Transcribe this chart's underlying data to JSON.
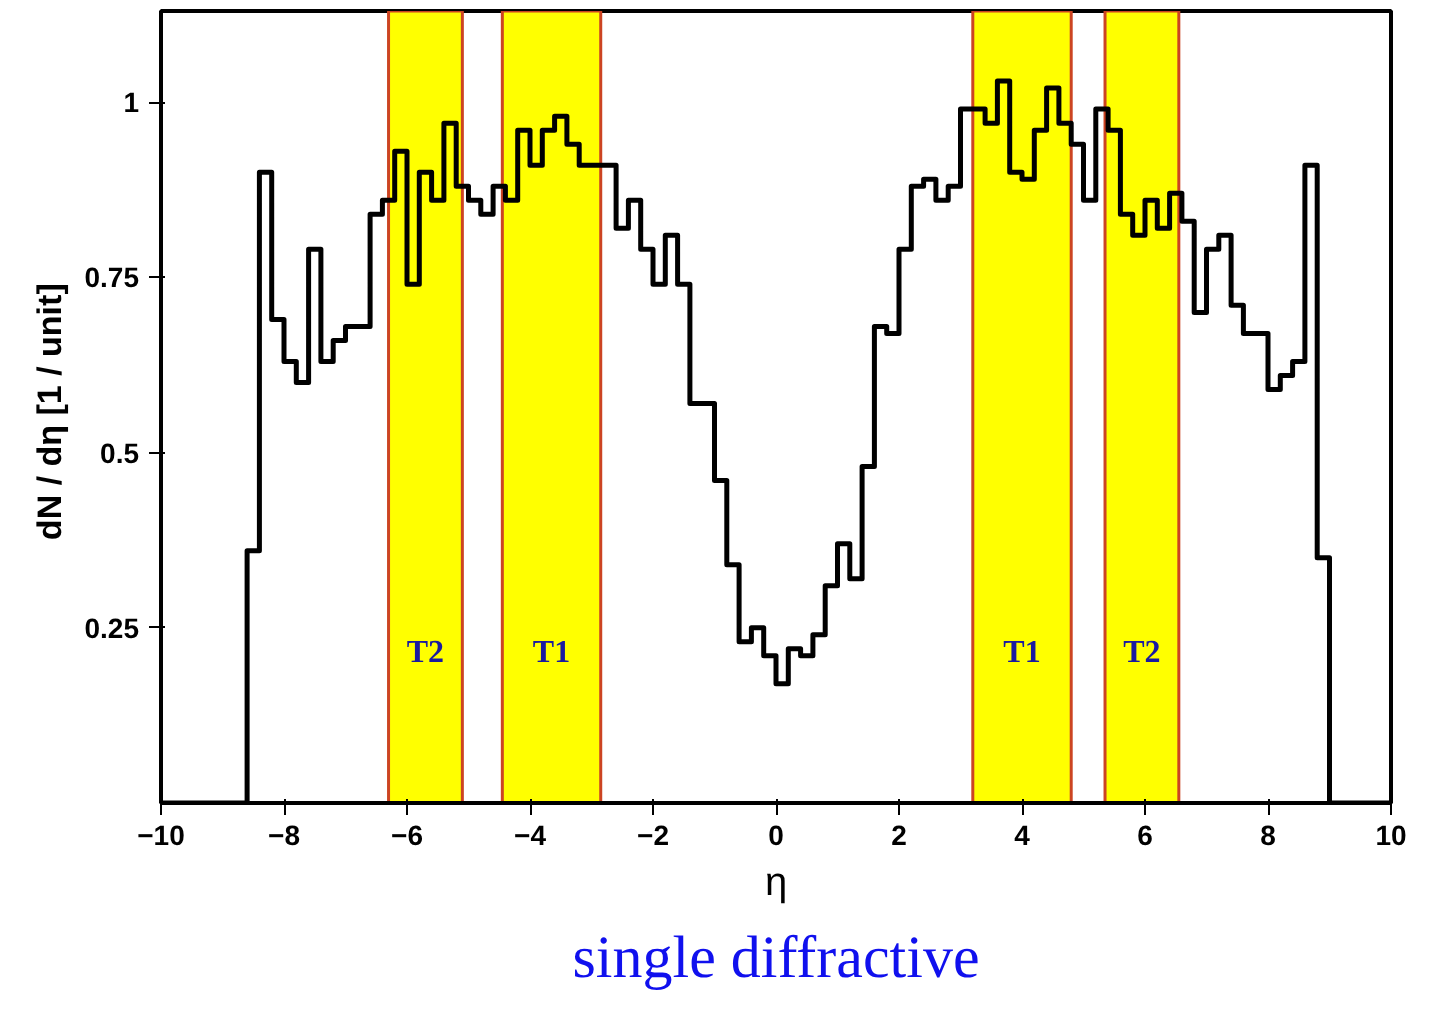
{
  "chart_data": {
    "type": "histogram",
    "xlabel": "η",
    "ylabel": "dN / dη  [1 / unit]",
    "annotations": [
      "single diffractive"
    ],
    "bins": [
      -10,
      -9.8,
      -9.6,
      -9.4,
      -9.2,
      -9,
      -8.8,
      -8.6,
      -8.4,
      -8.2,
      -8,
      -7.8,
      -7.6,
      -7.4,
      -7.2,
      -7,
      -6.8,
      -6.6,
      -6.4,
      -6.2,
      -6,
      -5.8,
      -5.6,
      -5.4,
      -5.2,
      -5,
      -4.8,
      -4.6,
      -4.4,
      -4.2,
      -4,
      -3.8,
      -3.6,
      -3.4,
      -3.2,
      -3,
      -2.8,
      -2.6,
      -2.4,
      -2.2,
      -2,
      -1.8,
      -1.6,
      -1.4,
      -1.2,
      -1,
      -0.8,
      -0.6,
      -0.4,
      -0.2,
      0,
      0.2,
      0.4,
      0.6,
      0.8,
      1,
      1.2,
      1.4,
      1.6,
      1.8,
      2,
      2.2,
      2.4,
      2.6,
      2.8,
      3,
      3.2,
      3.4,
      3.6,
      3.8,
      4,
      4.2,
      4.4,
      4.6,
      4.8,
      5,
      5.2,
      5.4,
      5.6,
      5.8,
      6,
      6.2,
      6.4,
      6.6,
      6.8,
      7,
      7.2,
      7.4,
      7.6,
      7.8,
      8,
      8.2,
      8.4,
      8.6,
      8.8,
      9,
      9.2,
      9.4,
      9.6,
      9.8,
      10
    ],
    "values": [
      0,
      0,
      0,
      0,
      0,
      0,
      0,
      0.36,
      0.9,
      0.69,
      0.63,
      0.6,
      0.79,
      0.63,
      0.66,
      0.68,
      0.68,
      0.84,
      0.86,
      0.93,
      0.74,
      0.9,
      0.86,
      0.97,
      0.88,
      0.86,
      0.84,
      0.88,
      0.86,
      0.96,
      0.91,
      0.96,
      0.98,
      0.94,
      0.91,
      0.91,
      0.91,
      0.82,
      0.86,
      0.79,
      0.74,
      0.81,
      0.74,
      0.57,
      0.57,
      0.46,
      0.34,
      0.23,
      0.25,
      0.21,
      0.17,
      0.22,
      0.21,
      0.24,
      0.31,
      0.37,
      0.32,
      0.48,
      0.68,
      0.67,
      0.79,
      0.88,
      0.89,
      0.86,
      0.88,
      0.99,
      0.99,
      0.97,
      1.03,
      0.9,
      0.89,
      0.96,
      1.02,
      0.97,
      0.94,
      0.86,
      0.99,
      0.96,
      0.84,
      0.81,
      0.86,
      0.82,
      0.87,
      0.83,
      0.7,
      0.79,
      0.81,
      0.71,
      0.67,
      0.67,
      0.59,
      0.61,
      0.63,
      0.91,
      0.35,
      0,
      0,
      0,
      0,
      0
    ],
    "color": "#000000",
    "xlim": [
      -10,
      10
    ],
    "xticks": [
      -10,
      -8,
      -6,
      -4,
      -2,
      0,
      2,
      4,
      6,
      8,
      10
    ],
    "ylim": [
      0,
      1.13
    ],
    "yticks": [
      0.25,
      0.5,
      0.75,
      1
    ],
    "bands": [
      {
        "axis": "x",
        "from": -6.3,
        "to": -5.1,
        "label": "T2",
        "color": "#ffff00"
      },
      {
        "axis": "x",
        "from": -4.45,
        "to": -2.85,
        "label": "T1",
        "color": "#ffff00"
      },
      {
        "axis": "x",
        "from": 3.2,
        "to": 4.8,
        "label": "T1",
        "color": "#ffff00"
      },
      {
        "axis": "x",
        "from": 5.35,
        "to": 6.55,
        "label": "T2",
        "color": "#ffff00"
      }
    ],
    "grid": false
  }
}
